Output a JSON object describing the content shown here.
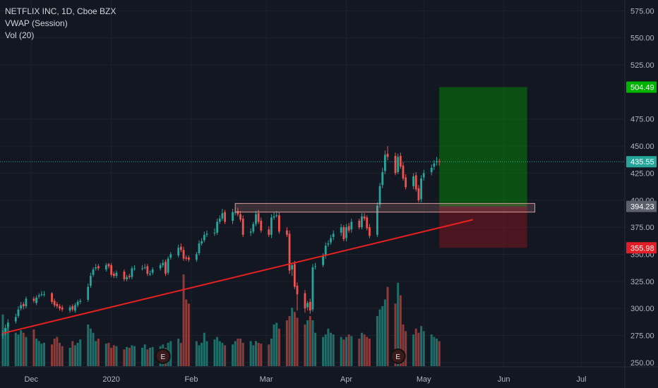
{
  "legend": {
    "symbol_line": "NETFLIX INC, 1D, Cboe BZX",
    "indicator_1": "VWAP (Session)",
    "indicator_2": "Vol (20)"
  },
  "colors": {
    "background": "#131722",
    "up": "#26a69a",
    "down": "#ef5350",
    "vol_up": "#1e6f69",
    "vol_down": "#8c3b3b",
    "trendline": "#e82020",
    "current_price": "#26a69a",
    "target": "#00b300",
    "stop": "#e11d26",
    "level": "#787b86",
    "grid": "#1e222d"
  },
  "chart_data": {
    "type": "candlestick",
    "symbol": "NFLX",
    "exchange": "Cboe BZX",
    "interval": "1D",
    "grid": true,
    "legend_position": "top-left",
    "price_axis_position": "right",
    "y_ticks": [
      "575.00",
      "550.00",
      "525.00",
      "475.00",
      "450.00",
      "425.00",
      "400.00",
      "375.00",
      "350.00",
      "325.00",
      "300.00",
      "275.00",
      "250.00"
    ],
    "x_ticks": [
      "Dec",
      "2020",
      "Feb",
      "Mar",
      "Apr",
      "May",
      "Jun",
      "Jul"
    ],
    "ylim": [
      246,
      585
    ],
    "start_date": "2019-11-20",
    "current_price": "435.55",
    "level": "394.23",
    "target": "504.49",
    "stop": "355.98",
    "earnings_markers": [
      "2020-01-21",
      "2020-04-21"
    ],
    "earnings_label": "E",
    "trendline": {
      "from": [
        "2019-11-20",
        277
      ],
      "to": [
        "2020-05-20",
        382
      ]
    },
    "position": {
      "from": "2020-05-07",
      "to": "2020-06-10",
      "entry": 394.23,
      "target": 504.49,
      "stop": 355.98
    },
    "support_zone": {
      "from": "2020-02-18",
      "to": "2020-06-13",
      "low": 389,
      "high": 397
    },
    "close": [
      277,
      282,
      287,
      292,
      299,
      303,
      302,
      309,
      307,
      310,
      312,
      313,
      313,
      306,
      303,
      302,
      300,
      299,
      301,
      299,
      303,
      306,
      307,
      320,
      330,
      336,
      338,
      337,
      340,
      339,
      331,
      330,
      333,
      327,
      329,
      329,
      337,
      337,
      337,
      338,
      332,
      332,
      336,
      340,
      342,
      332,
      346,
      350,
      356,
      354,
      346,
      346,
      345,
      350,
      360,
      362,
      368,
      369,
      370,
      380,
      383,
      388,
      380,
      389,
      389,
      387,
      382,
      368,
      371,
      378,
      387,
      380,
      372,
      368,
      384,
      385,
      386,
      371,
      368,
      335,
      340,
      320,
      313,
      300,
      305,
      298,
      338,
      339,
      348,
      358,
      360,
      365,
      369,
      375,
      364,
      375,
      372,
      380,
      375,
      385,
      383,
      374,
      367,
      395,
      413,
      426,
      442,
      440,
      425,
      440,
      431,
      420,
      412,
      422,
      410,
      400,
      420,
      425,
      430,
      434,
      436,
      435.55
    ],
    "open": [
      275,
      277,
      283,
      288,
      293,
      300,
      304,
      302,
      309,
      305,
      311,
      313,
      313,
      314,
      307,
      304,
      302,
      301,
      298,
      302,
      298,
      303,
      306,
      308,
      321,
      331,
      337,
      339,
      336,
      341,
      340,
      332,
      330,
      334,
      327,
      330,
      329,
      337,
      337,
      338,
      339,
      332,
      333,
      337,
      340,
      343,
      333,
      347,
      349,
      357,
      354,
      347,
      347,
      345,
      351,
      360,
      363,
      368,
      370,
      370,
      380,
      383,
      389,
      381,
      389,
      390,
      387,
      383,
      370,
      371,
      378,
      388,
      381,
      373,
      368,
      384,
      386,
      386,
      372,
      369,
      336,
      341,
      321,
      314,
      301,
      306,
      299,
      339,
      340,
      349,
      359,
      361,
      366,
      370,
      375,
      365,
      376,
      373,
      381,
      375,
      385,
      384,
      375,
      368,
      396,
      414,
      427,
      443,
      441,
      426,
      441,
      432,
      421,
      413,
      423,
      411,
      401,
      421,
      426,
      431,
      435,
      436
    ],
    "high": [
      280,
      285,
      290,
      295,
      302,
      306,
      306,
      311,
      311,
      312,
      314,
      316,
      316,
      315,
      309,
      306,
      304,
      303,
      303,
      304,
      305,
      308,
      309,
      323,
      333,
      338,
      341,
      341,
      342,
      342,
      342,
      334,
      335,
      336,
      331,
      332,
      339,
      340,
      340,
      341,
      341,
      335,
      338,
      342,
      345,
      345,
      348,
      352,
      359,
      360,
      357,
      349,
      349,
      352,
      363,
      365,
      371,
      372,
      374,
      383,
      386,
      392,
      391,
      392,
      393,
      393,
      390,
      386,
      374,
      380,
      390,
      391,
      384,
      376,
      387,
      389,
      390,
      389,
      375,
      372,
      342,
      344,
      324,
      317,
      307,
      309,
      341,
      342,
      351,
      361,
      363,
      368,
      372,
      378,
      377,
      378,
      379,
      383,
      383,
      388,
      388,
      386,
      378,
      398,
      416,
      430,
      446,
      450,
      444,
      443,
      444,
      435,
      424,
      425,
      426,
      414,
      423,
      428,
      433,
      437,
      440,
      438
    ],
    "low": [
      272,
      275,
      281,
      286,
      291,
      298,
      299,
      300,
      305,
      303,
      309,
      311,
      311,
      304,
      301,
      300,
      298,
      297,
      296,
      297,
      296,
      301,
      304,
      306,
      319,
      329,
      335,
      335,
      334,
      337,
      329,
      328,
      328,
      325,
      325,
      327,
      327,
      335,
      335,
      336,
      330,
      330,
      331,
      335,
      338,
      330,
      331,
      345,
      347,
      352,
      344,
      344,
      343,
      343,
      349,
      358,
      361,
      366,
      367,
      368,
      378,
      381,
      378,
      378,
      386,
      385,
      380,
      366,
      367,
      369,
      376,
      378,
      370,
      366,
      365,
      382,
      384,
      369,
      366,
      332,
      330,
      318,
      298,
      296,
      298,
      295,
      297,
      336,
      338,
      346,
      357,
      359,
      363,
      367,
      362,
      362,
      370,
      370,
      373,
      373,
      381,
      372,
      365,
      366,
      393,
      411,
      424,
      437,
      423,
      424,
      429,
      418,
      410,
      410,
      408,
      398,
      398,
      418,
      423,
      428,
      432,
      432
    ],
    "volume": [
      62,
      45,
      50,
      40,
      38,
      43,
      40,
      35,
      44,
      33,
      30,
      27,
      28,
      26,
      33,
      35,
      28,
      24,
      22,
      30,
      25,
      28,
      32,
      50,
      45,
      40,
      30,
      33,
      27,
      28,
      22,
      25,
      24,
      20,
      23,
      22,
      25,
      24,
      22,
      26,
      20,
      22,
      23,
      24,
      26,
      22,
      28,
      30,
      33,
      28,
      110,
      80,
      75,
      30,
      25,
      28,
      40,
      30,
      32,
      35,
      30,
      28,
      25,
      26,
      30,
      33,
      33,
      28,
      30,
      25,
      30,
      28,
      27,
      26,
      33,
      50,
      52,
      45,
      55,
      60,
      70,
      65,
      58,
      50,
      55,
      60,
      55,
      40,
      35,
      38,
      45,
      40,
      38,
      35,
      32,
      35,
      38,
      36,
      33,
      40,
      38,
      35,
      33,
      60,
      68,
      72,
      80,
      95,
      75,
      100,
      85,
      50,
      42,
      38,
      45,
      40,
      48,
      42,
      38,
      35,
      33,
      30
    ]
  }
}
